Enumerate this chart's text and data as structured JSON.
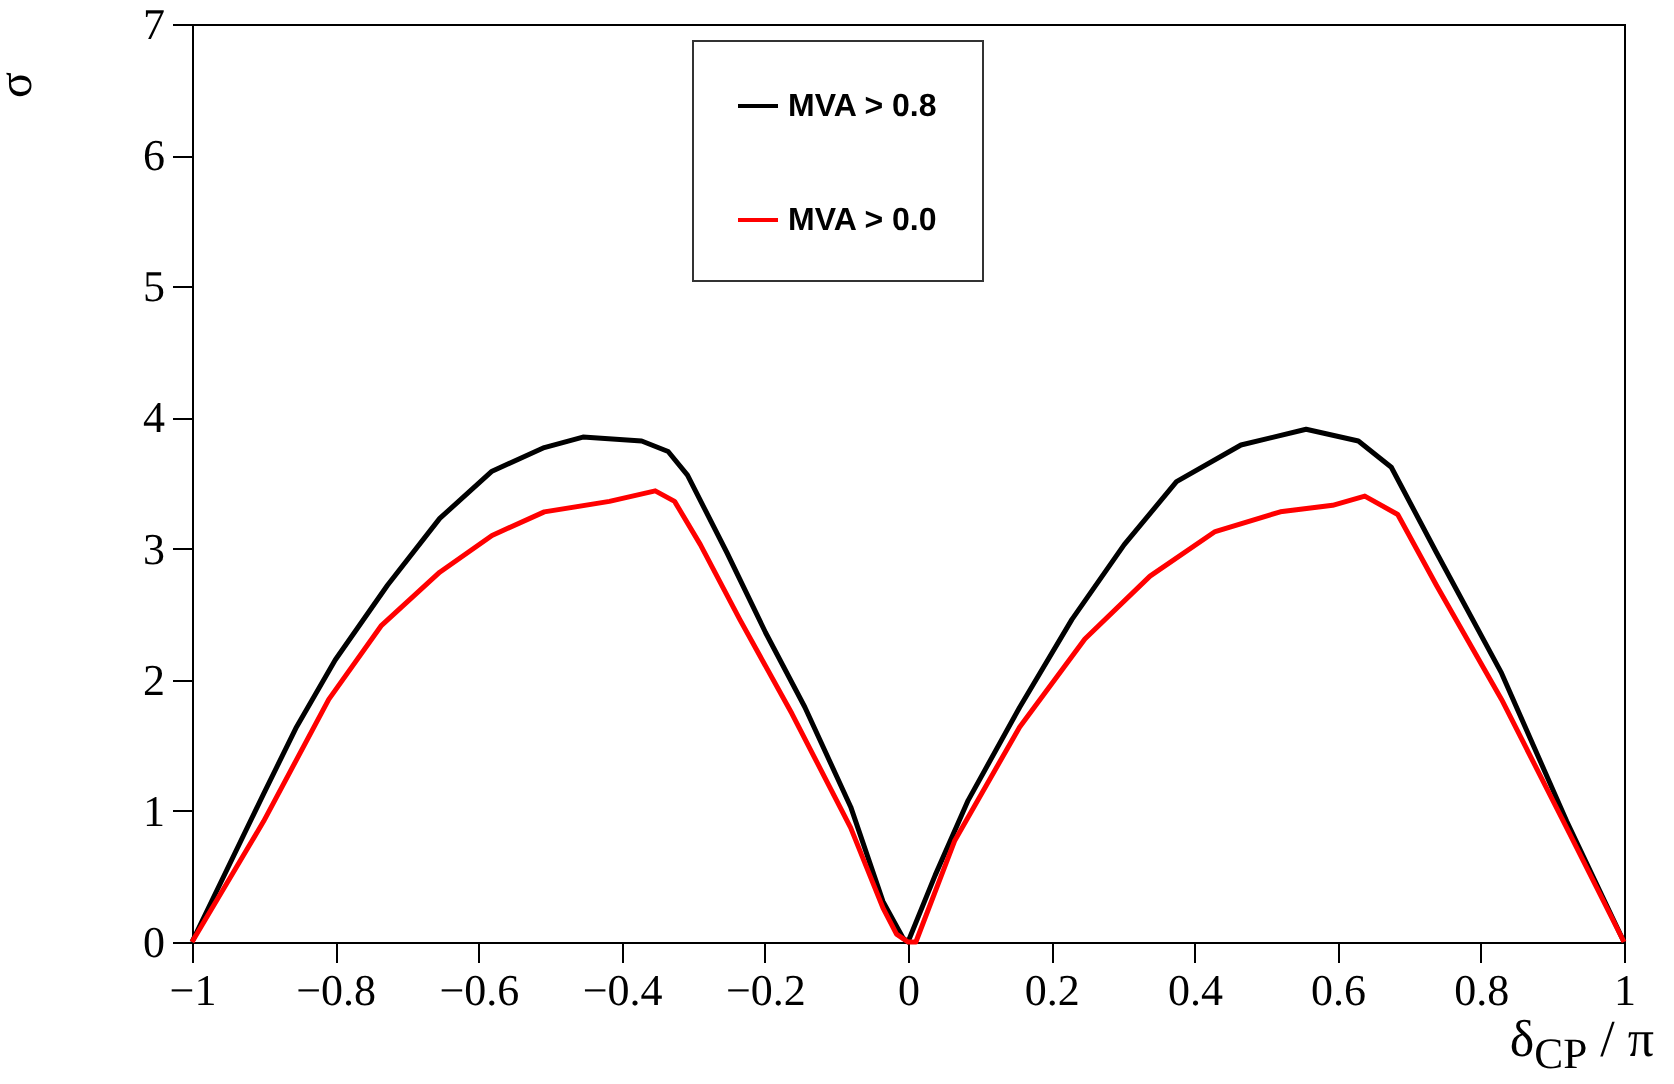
{
  "chart_data": {
    "type": "line",
    "xlabel": "δ$_{CP}$ / π",
    "ylabel": "σ",
    "x": [
      -1,
      -0.9,
      -0.854,
      -0.8,
      -0.727,
      -0.654,
      -0.581,
      -0.508,
      -0.454,
      -0.372,
      -0.335,
      -0.308,
      -0.253,
      -0.199,
      -0.144,
      -0.08,
      -0.035,
      -0.007,
      0,
      0.038,
      0.084,
      0.156,
      0.229,
      0.302,
      0.375,
      0.465,
      0.556,
      0.629,
      0.675,
      0.738,
      0.829,
      0.92,
      1
    ],
    "series": [
      {
        "name": "MVA > 0.8",
        "color": "#000000",
        "values": [
          0,
          1.13,
          1.64,
          2.15,
          2.72,
          3.23,
          3.59,
          3.77,
          3.85,
          3.82,
          3.74,
          3.56,
          2.97,
          2.36,
          1.79,
          1.03,
          0.31,
          0.03,
          0,
          0.51,
          1.08,
          1.79,
          2.46,
          3.03,
          3.51,
          3.79,
          3.91,
          3.82,
          3.62,
          2.97,
          2.05,
          0.92,
          0
        ]
      },
      {
        "name": "MVA > 0.0",
        "color": "#ff0000",
        "x": [
          -1,
          -0.9,
          -0.809,
          -0.736,
          -0.654,
          -0.581,
          -0.508,
          -0.417,
          -0.353,
          -0.326,
          -0.29,
          -0.235,
          -0.162,
          -0.08,
          -0.035,
          -0.016,
          0,
          0.011,
          0.065,
          0.156,
          0.247,
          0.338,
          0.429,
          0.52,
          0.593,
          0.638,
          0.684,
          0.738,
          0.829,
          0.92,
          1
        ],
        "values": [
          0,
          0.92,
          1.85,
          2.41,
          2.82,
          3.1,
          3.28,
          3.36,
          3.44,
          3.36,
          3.03,
          2.46,
          1.74,
          0.87,
          0.26,
          0.06,
          0,
          0,
          0.77,
          1.64,
          2.31,
          2.79,
          3.13,
          3.28,
          3.33,
          3.4,
          3.26,
          2.72,
          1.85,
          0.87,
          0
        ]
      }
    ],
    "xlim": [
      -1,
      1
    ],
    "xticks": [
      {
        "value": -1,
        "label": "−1"
      },
      {
        "value": -0.8,
        "label": "−0.8"
      },
      {
        "value": -0.6,
        "label": "−0.6"
      },
      {
        "value": -0.4,
        "label": "−0.4"
      },
      {
        "value": -0.2,
        "label": "−0.2"
      },
      0,
      0.2,
      0.4,
      0.6,
      0.8,
      1
    ],
    "ylim": [
      0,
      7
    ],
    "yticks": [
      0,
      1,
      2,
      3,
      4,
      5,
      6,
      7
    ],
    "legend": "top"
  }
}
